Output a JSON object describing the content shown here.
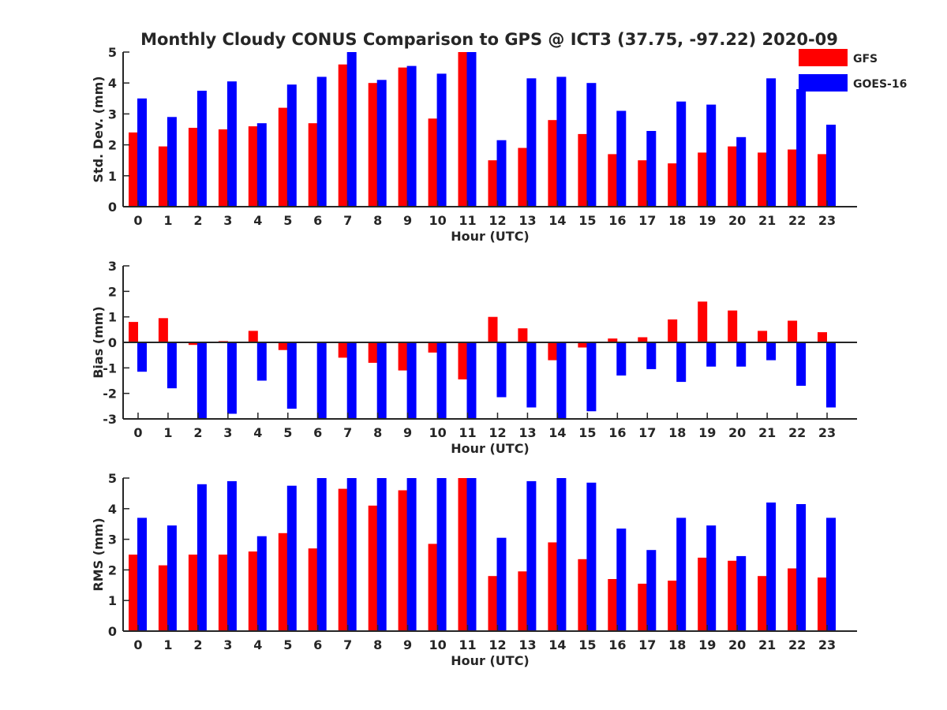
{
  "chart_data": [
    {
      "type": "bar",
      "title": "Monthly Cloudy CONUS Comparison to GPS @ ICT3 (37.75, -97.22) 2020-09",
      "xlabel": "Hour (UTC)",
      "ylabel": "Std. Dev. (mm)",
      "ylim": [
        0,
        5
      ],
      "yticks": [
        "0",
        "1",
        "2",
        "3",
        "4",
        "5"
      ],
      "categories": [
        "0",
        "1",
        "2",
        "3",
        "4",
        "5",
        "6",
        "7",
        "8",
        "9",
        "10",
        "11",
        "12",
        "13",
        "14",
        "15",
        "16",
        "17",
        "18",
        "19",
        "20",
        "21",
        "22",
        "23"
      ],
      "legend": {
        "placement": "top-right",
        "entries": [
          "GFS",
          "GOES-16"
        ]
      },
      "series": [
        {
          "name": "GFS",
          "color": "#ff0000",
          "values": [
            2.4,
            1.95,
            2.55,
            2.5,
            2.6,
            3.2,
            2.7,
            4.6,
            4.0,
            4.5,
            2.85,
            5.0,
            1.5,
            1.9,
            2.8,
            2.35,
            1.7,
            1.5,
            1.4,
            1.75,
            1.95,
            1.75,
            1.85,
            1.7
          ]
        },
        {
          "name": "GOES-16",
          "color": "#0000ff",
          "values": [
            3.5,
            2.9,
            3.75,
            4.05,
            2.7,
            3.95,
            4.2,
            5.0,
            4.1,
            4.55,
            4.3,
            5.0,
            2.15,
            4.15,
            4.2,
            4.0,
            3.1,
            2.45,
            3.4,
            3.3,
            2.25,
            4.15,
            3.8,
            2.65
          ]
        }
      ]
    },
    {
      "type": "bar",
      "xlabel": "Hour (UTC)",
      "ylabel": "Bias (mm)",
      "ylim": [
        -3,
        3
      ],
      "yticks": [
        "-3",
        "-2",
        "-1",
        "0",
        "1",
        "2",
        "3"
      ],
      "categories": [
        "0",
        "1",
        "2",
        "3",
        "4",
        "5",
        "6",
        "7",
        "8",
        "9",
        "10",
        "11",
        "12",
        "13",
        "14",
        "15",
        "16",
        "17",
        "18",
        "19",
        "20",
        "21",
        "22",
        "23"
      ],
      "series": [
        {
          "name": "GFS",
          "color": "#ff0000",
          "values": [
            0.8,
            0.95,
            -0.1,
            0.05,
            0.45,
            -0.3,
            0.0,
            -0.6,
            -0.8,
            -1.1,
            -0.4,
            -1.45,
            1.0,
            0.55,
            -0.7,
            -0.2,
            0.15,
            0.2,
            0.9,
            1.6,
            1.25,
            0.45,
            0.85,
            0.4
          ]
        },
        {
          "name": "GOES-16",
          "color": "#0000ff",
          "values": [
            -1.15,
            -1.8,
            -3.0,
            -2.8,
            -1.5,
            -2.6,
            -3.0,
            -3.0,
            -3.0,
            -3.0,
            -3.0,
            -3.0,
            -2.15,
            -2.55,
            -3.0,
            -2.7,
            -1.3,
            -1.05,
            -1.55,
            -0.95,
            -0.95,
            -0.7,
            -1.7,
            -2.55
          ]
        }
      ]
    },
    {
      "type": "bar",
      "xlabel": "Hour (UTC)",
      "ylabel": "RMS (mm)",
      "ylim": [
        0,
        5
      ],
      "yticks": [
        "0",
        "1",
        "2",
        "3",
        "4",
        "5"
      ],
      "categories": [
        "0",
        "1",
        "2",
        "3",
        "4",
        "5",
        "6",
        "7",
        "8",
        "9",
        "10",
        "11",
        "12",
        "13",
        "14",
        "15",
        "16",
        "17",
        "18",
        "19",
        "20",
        "21",
        "22",
        "23"
      ],
      "series": [
        {
          "name": "GFS",
          "color": "#ff0000",
          "values": [
            2.5,
            2.15,
            2.5,
            2.5,
            2.6,
            3.2,
            2.7,
            4.65,
            4.1,
            4.6,
            2.85,
            5.0,
            1.8,
            1.95,
            2.9,
            2.35,
            1.7,
            1.55,
            1.65,
            2.4,
            2.3,
            1.8,
            2.05,
            1.75
          ]
        },
        {
          "name": "GOES-16",
          "color": "#0000ff",
          "values": [
            3.7,
            3.45,
            4.8,
            4.9,
            3.1,
            4.75,
            5.0,
            5.0,
            5.0,
            5.0,
            5.0,
            5.0,
            3.05,
            4.9,
            5.0,
            4.85,
            3.35,
            2.65,
            3.7,
            3.45,
            2.45,
            4.2,
            4.15,
            3.7
          ]
        }
      ]
    }
  ]
}
